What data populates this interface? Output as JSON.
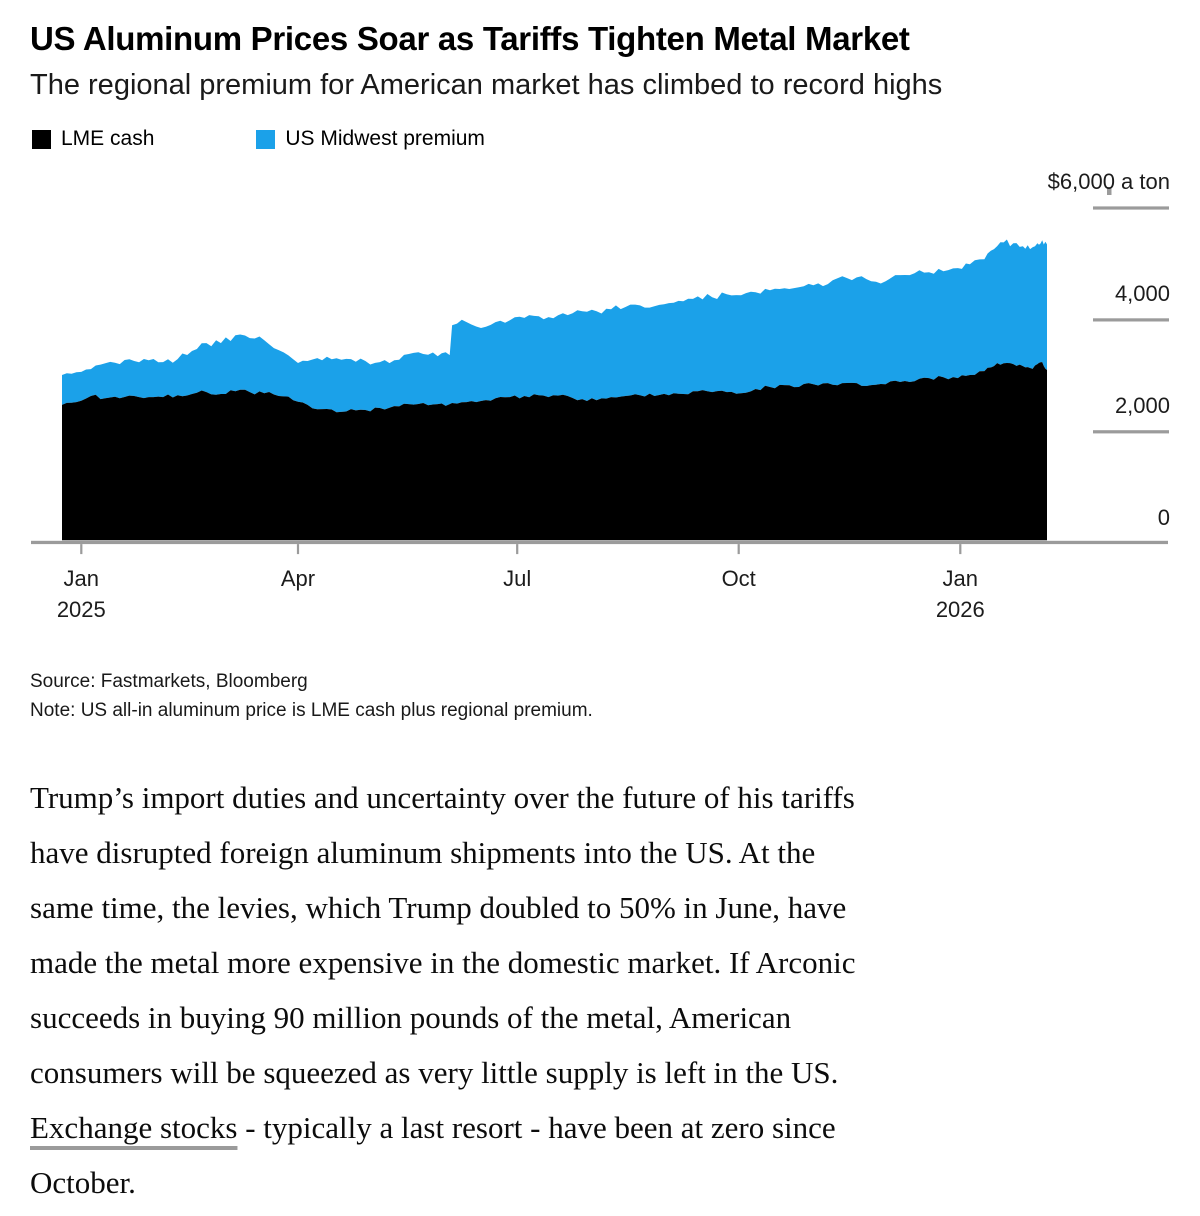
{
  "header": {
    "title": "US Aluminum Prices Soar as Tariffs Tighten Metal Market",
    "subtitle": "The regional premium for American market has climbed to record highs"
  },
  "chart_data": {
    "type": "area",
    "stacked": true,
    "title": "US Aluminum Prices Soar as Tariffs Tighten Metal Market",
    "subtitle": "The regional premium for American market has climbed to record highs",
    "unit": "$ a ton",
    "grid": false,
    "legend_position": "top-left",
    "series": [
      {
        "name": "LME cash",
        "color": "#000000"
      },
      {
        "name": "US Midwest premium",
        "color": "#1ba1e9"
      }
    ],
    "y_axis": {
      "side": "right",
      "max": 6000,
      "min": 0,
      "ticks": [
        {
          "value": 6000,
          "label": "$6,000 a ton"
        },
        {
          "value": 4000,
          "label": "4,000"
        },
        {
          "value": 2000,
          "label": "2,000"
        },
        {
          "value": 0,
          "label": "0"
        }
      ]
    },
    "x_axis": {
      "domain": [
        "2024-12-24",
        "2026-02-06"
      ],
      "ticks": [
        {
          "date": "2025-01-01",
          "label": "Jan",
          "sublabel": "2025"
        },
        {
          "date": "2025-04-01",
          "label": "Apr",
          "sublabel": ""
        },
        {
          "date": "2025-07-01",
          "label": "Jul",
          "sublabel": ""
        },
        {
          "date": "2025-10-01",
          "label": "Oct",
          "sublabel": ""
        },
        {
          "date": "2026-01-01",
          "label": "Jan",
          "sublabel": "2026"
        }
      ]
    },
    "points_columns": [
      "date",
      "lme_cash",
      "us_midwest_premium"
    ],
    "points": [
      [
        "2024-12-24",
        2480,
        535
      ],
      [
        "2024-12-30",
        2530,
        535
      ],
      [
        "2025-01-05",
        2640,
        480
      ],
      [
        "2025-01-11",
        2600,
        625
      ],
      [
        "2025-01-17",
        2600,
        610
      ],
      [
        "2025-01-23",
        2640,
        625
      ],
      [
        "2025-01-29",
        2620,
        660
      ],
      [
        "2025-02-04",
        2620,
        625
      ],
      [
        "2025-02-10",
        2655,
        645
      ],
      [
        "2025-02-16",
        2675,
        770
      ],
      [
        "2025-02-22",
        2710,
        875
      ],
      [
        "2025-02-28",
        2675,
        910
      ],
      [
        "2025-03-06",
        2725,
        1000
      ],
      [
        "2025-03-12",
        2710,
        965
      ],
      [
        "2025-03-18",
        2690,
        945
      ],
      [
        "2025-03-24",
        2640,
        820
      ],
      [
        "2025-03-30",
        2565,
        730
      ],
      [
        "2025-04-05",
        2480,
        785
      ],
      [
        "2025-04-11",
        2405,
        875
      ],
      [
        "2025-04-17",
        2350,
        965
      ],
      [
        "2025-04-23",
        2405,
        895
      ],
      [
        "2025-04-29",
        2390,
        875
      ],
      [
        "2025-05-05",
        2425,
        820
      ],
      [
        "2025-05-11",
        2460,
        820
      ],
      [
        "2025-05-17",
        2495,
        895
      ],
      [
        "2025-05-23",
        2515,
        875
      ],
      [
        "2025-05-29",
        2495,
        855
      ],
      [
        "2025-06-03",
        2495,
        875
      ],
      [
        "2025-06-04",
        2515,
        1390
      ],
      [
        "2025-06-10",
        2530,
        1430
      ],
      [
        "2025-06-16",
        2550,
        1305
      ],
      [
        "2025-06-22",
        2600,
        1360
      ],
      [
        "2025-06-28",
        2620,
        1375
      ],
      [
        "2025-07-04",
        2640,
        1395
      ],
      [
        "2025-07-10",
        2655,
        1410
      ],
      [
        "2025-07-16",
        2655,
        1375
      ],
      [
        "2025-07-22",
        2640,
        1445
      ],
      [
        "2025-07-28",
        2585,
        1570
      ],
      [
        "2025-08-03",
        2565,
        1590
      ],
      [
        "2025-08-09",
        2620,
        1570
      ],
      [
        "2025-08-15",
        2640,
        1590
      ],
      [
        "2025-08-21",
        2655,
        1605
      ],
      [
        "2025-08-27",
        2640,
        1605
      ],
      [
        "2025-09-02",
        2655,
        1645
      ],
      [
        "2025-09-08",
        2675,
        1660
      ],
      [
        "2025-09-14",
        2725,
        1695
      ],
      [
        "2025-09-20",
        2710,
        1695
      ],
      [
        "2025-09-26",
        2710,
        1750
      ],
      [
        "2025-10-02",
        2690,
        1750
      ],
      [
        "2025-10-08",
        2765,
        1730
      ],
      [
        "2025-10-14",
        2800,
        1730
      ],
      [
        "2025-10-20",
        2835,
        1730
      ],
      [
        "2025-10-26",
        2800,
        1785
      ],
      [
        "2025-11-01",
        2850,
        1770
      ],
      [
        "2025-11-07",
        2870,
        1770
      ],
      [
        "2025-11-13",
        2870,
        1910
      ],
      [
        "2025-11-19",
        2870,
        1890
      ],
      [
        "2025-11-25",
        2835,
        1855
      ],
      [
        "2025-12-01",
        2850,
        1840
      ],
      [
        "2025-12-07",
        2890,
        1910
      ],
      [
        "2025-12-13",
        2905,
        1930
      ],
      [
        "2025-12-19",
        2960,
        1890
      ],
      [
        "2025-12-25",
        2975,
        1895
      ],
      [
        "2025-12-31",
        2960,
        1965
      ],
      [
        "2026-01-05",
        3015,
        1980
      ],
      [
        "2026-01-11",
        3085,
        2000
      ],
      [
        "2026-01-15",
        3175,
        2090
      ],
      [
        "2026-01-19",
        3225,
        2160
      ],
      [
        "2026-01-23",
        3210,
        2160
      ],
      [
        "2026-01-27",
        3175,
        2140
      ],
      [
        "2026-01-30",
        3140,
        2125
      ],
      [
        "2026-02-02",
        3210,
        2160
      ],
      [
        "2026-02-04",
        3245,
        2180
      ],
      [
        "2026-02-06",
        3105,
        2245
      ]
    ],
    "colors": {
      "axis_line": "#9b9b9b",
      "tick_line": "#9b9b9b",
      "label_text": "#1c1c1c"
    }
  },
  "legend": [
    {
      "label": "LME cash",
      "color": "#000000"
    },
    {
      "label": "US Midwest premium",
      "color": "#1ba1e9"
    }
  ],
  "footnotes": {
    "source": "Source: Fastmarkets, Bloomberg",
    "note": "Note: US all-in aluminum price is LME cash plus regional premium."
  },
  "article": {
    "lines": [
      "Trump’s import duties and uncertainty over the future of his tariffs",
      "have disrupted foreign aluminum shipments into the US. At the",
      "same time, the levies, which Trump doubled to 50% in June, have",
      "made the metal more expensive in the domestic market. If Arconic",
      "succeeds in buying 90 million pounds of the metal, American",
      "consumers will be squeezed as very little supply is left in the US."
    ],
    "link_line": {
      "link_text": "Exchange stocks",
      "rest": " - typically a last resort - have been at zero since"
    },
    "last_line": "October."
  }
}
